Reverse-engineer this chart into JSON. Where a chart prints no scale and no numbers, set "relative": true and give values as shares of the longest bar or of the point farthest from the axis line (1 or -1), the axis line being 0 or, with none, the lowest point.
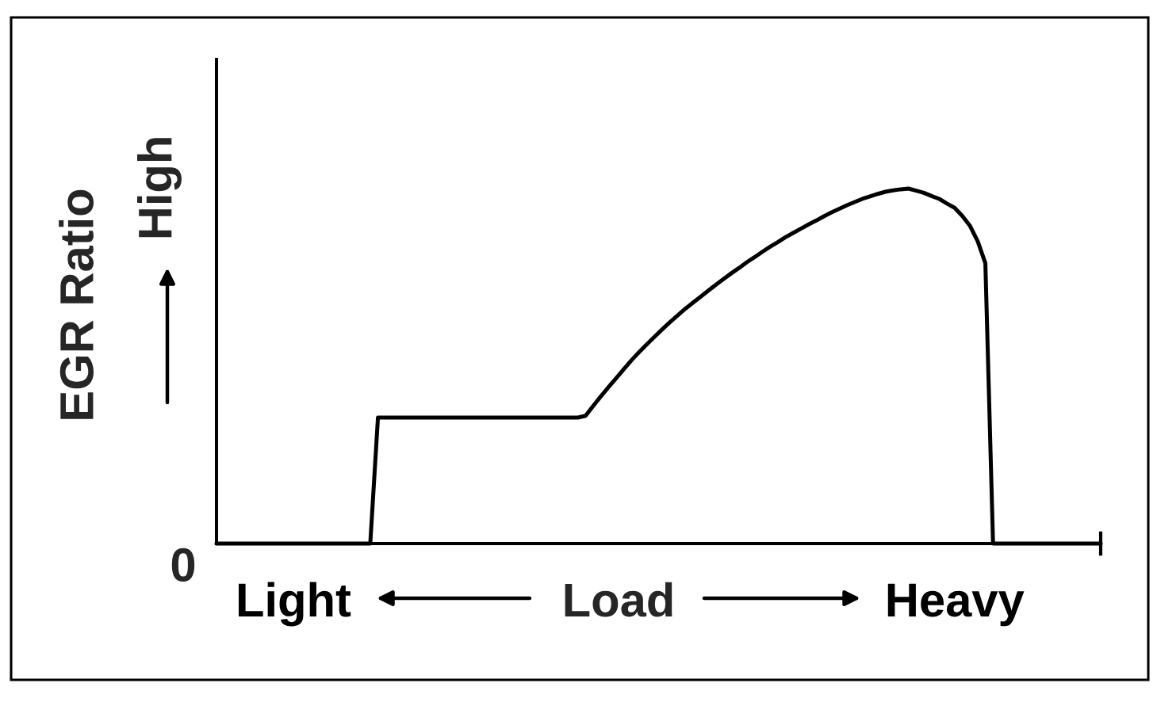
{
  "chart_data": {
    "type": "line",
    "relative": true,
    "xlabel": "Load",
    "ylabel": "EGR Ratio",
    "categories": [
      null,
      null,
      null,
      null,
      null,
      null,
      null,
      null,
      null,
      null,
      "Light",
      null,
      null,
      null,
      null,
      null,
      null,
      null,
      null,
      null,
      null,
      null,
      null,
      null,
      null,
      null,
      null,
      null,
      null,
      null,
      null,
      null,
      null,
      null,
      null,
      null,
      null,
      null,
      null,
      null,
      null,
      null,
      null,
      null,
      null,
      null,
      null,
      null,
      null,
      null,
      null,
      null,
      null,
      null,
      null,
      null,
      null,
      null,
      null,
      null,
      null,
      null,
      null,
      null,
      null,
      null,
      null,
      null,
      null,
      null,
      null,
      null,
      null,
      null,
      null,
      null,
      null,
      null,
      null,
      null,
      null,
      null,
      null,
      null,
      null,
      null,
      null,
      null,
      null,
      null,
      null,
      null,
      null,
      null,
      null,
      null,
      "Heavy",
      null,
      null,
      null,
      null,
      null,
      null,
      null,
      null,
      null,
      null,
      null,
      null,
      null,
      null,
      null,
      null,
      null,
      null,
      null
    ],
    "series": [
      {
        "color": "#000000",
        "values": [
          0,
          0,
          0,
          0,
          0,
          0,
          0,
          0,
          0,
          0,
          0,
          0,
          0,
          0,
          0,
          0,
          0,
          0,
          0,
          0,
          0,
          0.355,
          0.355,
          0.355,
          0.355,
          0.355,
          0.355,
          0.355,
          0.355,
          0.355,
          0.355,
          0.355,
          0.355,
          0.355,
          0.355,
          0.355,
          0.355,
          0.355,
          0.355,
          0.355,
          0.355,
          0.355,
          0.355,
          0.355,
          0.355,
          0.355,
          0.355,
          0.355,
          0.36,
          0.388,
          0.415,
          0.441,
          0.466,
          0.492,
          0.517,
          0.54,
          0.562,
          0.583,
          0.604,
          0.624,
          0.643,
          0.662,
          0.679,
          0.696,
          0.713,
          0.73,
          0.746,
          0.762,
          0.777,
          0.793,
          0.807,
          0.822,
          0.836,
          0.849,
          0.863,
          0.875,
          0.887,
          0.899,
          0.91,
          0.922,
          0.933,
          0.943,
          0.953,
          0.962,
          0.971,
          0.978,
          0.985,
          0.991,
          0.995,
          0.998,
          1,
          0.994,
          0.988,
          0.979,
          0.971,
          0.958,
          0.946,
          0.923,
          0.895,
          0.852,
          0.79,
          0,
          0,
          0,
          0,
          0,
          0,
          0,
          0,
          0,
          0,
          0,
          0,
          0,
          0,
          0
        ]
      }
    ],
    "annotations": [
      "0",
      "High"
    ]
  }
}
